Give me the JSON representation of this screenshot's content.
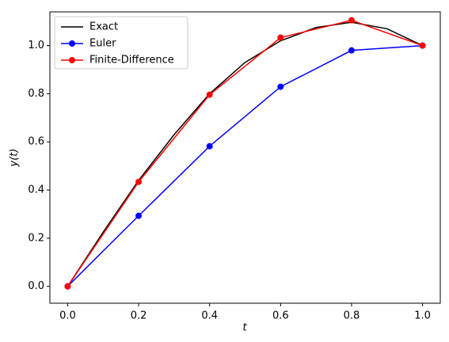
{
  "chart_data": {
    "type": "line",
    "xlabel": "t",
    "ylabel": "y(t)",
    "xlim": [
      -0.05,
      1.05
    ],
    "xticks": [
      {
        "value": 0,
        "label": "0.0"
      },
      0.2,
      0.4,
      0.6,
      0.8,
      {
        "value": 1,
        "label": "1.0"
      }
    ],
    "ylim": [
      -0.07,
      1.14
    ],
    "yticks": [
      {
        "value": 0,
        "label": "0.0"
      },
      0.2,
      0.4,
      0.6,
      0.8,
      {
        "value": 1,
        "label": "1.0"
      }
    ],
    "legend": "upper-left",
    "series": [
      {
        "name": "Exact",
        "color": "#000000",
        "marker": "none",
        "x": [
          0,
          0.1,
          0.2,
          0.3,
          0.4,
          0.5,
          0.6,
          0.7,
          0.8,
          0.9,
          1.0
        ],
        "values": [
          0,
          0.225,
          0.44,
          0.63,
          0.8,
          0.93,
          1.02,
          1.075,
          1.097,
          1.07,
          1.0
        ]
      },
      {
        "name": "Euler",
        "color": "#0000ff",
        "marker": "circle",
        "x": [
          0,
          0.2,
          0.4,
          0.6,
          0.8,
          1.0
        ],
        "values": [
          0,
          0.293,
          0.582,
          0.829,
          0.98,
          1.0
        ]
      },
      {
        "name": "Finite-Difference",
        "color": "#ff0000",
        "marker": "circle",
        "x": [
          0,
          0.2,
          0.4,
          0.6,
          0.8,
          1.0
        ],
        "values": [
          0,
          0.434,
          0.796,
          1.033,
          1.105,
          1.0
        ]
      }
    ]
  }
}
